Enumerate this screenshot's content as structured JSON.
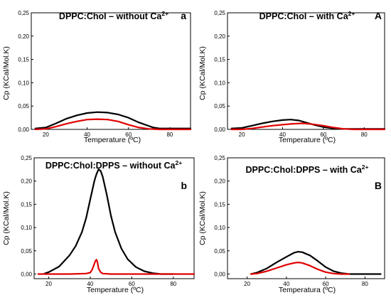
{
  "chart_data": [
    {
      "type": "line",
      "title": "DPPC:Chol – without Ca",
      "title_sup": "2+",
      "letter": "a",
      "xlabel": "Temperature (ºC)",
      "ylabel": "Cp (KCal/Mol.K)",
      "xlim": [
        13,
        90
      ],
      "ylim": [
        0,
        0.25
      ],
      "xticks": [
        20,
        40,
        60,
        80
      ],
      "xtick_labels": [
        "20",
        "40",
        "60",
        "80"
      ],
      "yticks": [
        0,
        0.05,
        0.1,
        0.15,
        0.2,
        0.25
      ],
      "ytick_labels": [
        "0,00",
        "0,05",
        "0,10",
        "0,15",
        "0,20",
        "0,25"
      ],
      "series": [
        {
          "color": "#000000",
          "x": [
            15,
            20,
            25,
            30,
            35,
            40,
            45,
            50,
            55,
            60,
            65,
            70,
            72,
            75,
            80,
            85,
            90
          ],
          "y": [
            0.002,
            0.004,
            0.013,
            0.023,
            0.03,
            0.035,
            0.037,
            0.036,
            0.032,
            0.025,
            0.015,
            0.007,
            0.004,
            0.002,
            0.002,
            0.002,
            0.002
          ]
        },
        {
          "color": "#e00000",
          "x": [
            15,
            20,
            25,
            30,
            35,
            40,
            45,
            50,
            55,
            60,
            65,
            70,
            75,
            80,
            85,
            90
          ],
          "y": [
            0,
            0.001,
            0.006,
            0.012,
            0.017,
            0.021,
            0.022,
            0.021,
            0.017,
            0.01,
            0.004,
            0.001,
            0,
            0,
            0,
            0
          ]
        }
      ]
    },
    {
      "type": "line",
      "title": "DPPC:Chol – with Ca",
      "title_sup": "2+",
      "letter": "A",
      "xlabel": "Temperature (ºC)",
      "ylabel": "Cp (KCal/Mol.K)",
      "xlim": [
        13,
        90
      ],
      "ylim": [
        0,
        0.25
      ],
      "xticks": [
        20,
        40,
        60,
        80
      ],
      "xtick_labels": [
        "20",
        "40",
        "60",
        "80"
      ],
      "yticks": [
        0,
        0.05,
        0.1,
        0.15,
        0.2,
        0.25
      ],
      "ytick_labels": [
        "0,00",
        "0,05",
        "0,10",
        "0,15",
        "0,20",
        "0,25"
      ],
      "series": [
        {
          "color": "#000000",
          "x": [
            15,
            20,
            25,
            30,
            35,
            40,
            44,
            48,
            52,
            56,
            60,
            65,
            70,
            75,
            80,
            85,
            90
          ],
          "y": [
            0.002,
            0.003,
            0.008,
            0.013,
            0.017,
            0.02,
            0.021,
            0.019,
            0.014,
            0.009,
            0.005,
            0.002,
            0.001,
            0.001,
            0.001,
            0.001,
            0.001
          ]
        },
        {
          "color": "#e00000",
          "x": [
            15,
            20,
            25,
            30,
            35,
            40,
            45,
            50,
            55,
            60,
            65,
            70,
            75,
            80,
            85,
            90
          ],
          "y": [
            0,
            0,
            0.002,
            0.005,
            0.008,
            0.01,
            0.012,
            0.013,
            0.011,
            0.008,
            0.004,
            0.001,
            0,
            0,
            0,
            0
          ]
        }
      ]
    },
    {
      "type": "line",
      "title": "DPPC:Chol:DPPS – without Ca",
      "title_sup": "2+",
      "letter": "b",
      "xlabel": "Temperature (ºC)",
      "ylabel": "Cp (KCal/Mol.K)",
      "xlim": [
        13,
        90
      ],
      "ylim": [
        -0.01,
        0.25
      ],
      "xticks": [
        20,
        40,
        60,
        80
      ],
      "xtick_labels": [
        "20",
        "40",
        "60",
        "80"
      ],
      "yticks": [
        0,
        0.05,
        0.1,
        0.15,
        0.2,
        0.25
      ],
      "ytick_labels": [
        "0,00",
        "0,05",
        "0,10",
        "0,15",
        "0,20",
        "0,25"
      ],
      "series": [
        {
          "color": "#000000",
          "x": [
            18,
            20,
            25,
            30,
            33,
            36,
            38,
            40,
            42,
            43,
            44,
            45,
            46,
            48,
            50,
            52,
            55,
            58,
            62,
            66,
            70,
            74,
            80
          ],
          "y": [
            0.001,
            0.004,
            0.016,
            0.04,
            0.06,
            0.09,
            0.12,
            0.16,
            0.2,
            0.215,
            0.225,
            0.222,
            0.21,
            0.17,
            0.125,
            0.09,
            0.055,
            0.032,
            0.015,
            0.006,
            0.002,
            0,
            0
          ]
        },
        {
          "color": "#e00000",
          "x": [
            15,
            30,
            38,
            40,
            41,
            42,
            42.5,
            43,
            43.5,
            44,
            45,
            46,
            50,
            60,
            70,
            80,
            90
          ],
          "y": [
            0,
            0,
            0.001,
            0.003,
            0.01,
            0.022,
            0.028,
            0.031,
            0.025,
            0.012,
            0.004,
            0.001,
            0,
            0,
            0,
            0,
            0
          ]
        }
      ]
    },
    {
      "type": "line",
      "title": "DPPC:Chol:DPPS – with Ca",
      "title_sup": "2+",
      "letter": "B",
      "xlabel": "Temperatura (ºC)",
      "ylabel": "Cp (KCal/Mol.K)",
      "xlim": [
        10,
        90
      ],
      "ylim": [
        -0.01,
        0.25
      ],
      "xticks": [
        20,
        40,
        60,
        80
      ],
      "xtick_labels": [
        "20",
        "40",
        "60",
        "80"
      ],
      "yticks": [
        0,
        0.05,
        0.1,
        0.15,
        0.2,
        0.25
      ],
      "ytick_labels": [
        "0,00",
        "0,05",
        "0,10",
        "0,15",
        "0,20",
        "0,25"
      ],
      "series": [
        {
          "color": "#000000",
          "x": [
            22,
            25,
            30,
            35,
            40,
            44,
            46,
            48,
            52,
            56,
            60,
            64,
            68,
            72,
            80,
            88
          ],
          "y": [
            0,
            0.003,
            0.012,
            0.025,
            0.037,
            0.046,
            0.048,
            0.047,
            0.04,
            0.028,
            0.015,
            0.006,
            0.002,
            0,
            0,
            0
          ]
        },
        {
          "color": "#e00000",
          "x": [
            22,
            25,
            30,
            35,
            40,
            44,
            46,
            48,
            52,
            56,
            60,
            64,
            68,
            72
          ],
          "y": [
            0,
            0.001,
            0.006,
            0.013,
            0.02,
            0.024,
            0.025,
            0.024,
            0.018,
            0.01,
            0.004,
            0.001,
            0,
            0
          ]
        }
      ]
    }
  ]
}
